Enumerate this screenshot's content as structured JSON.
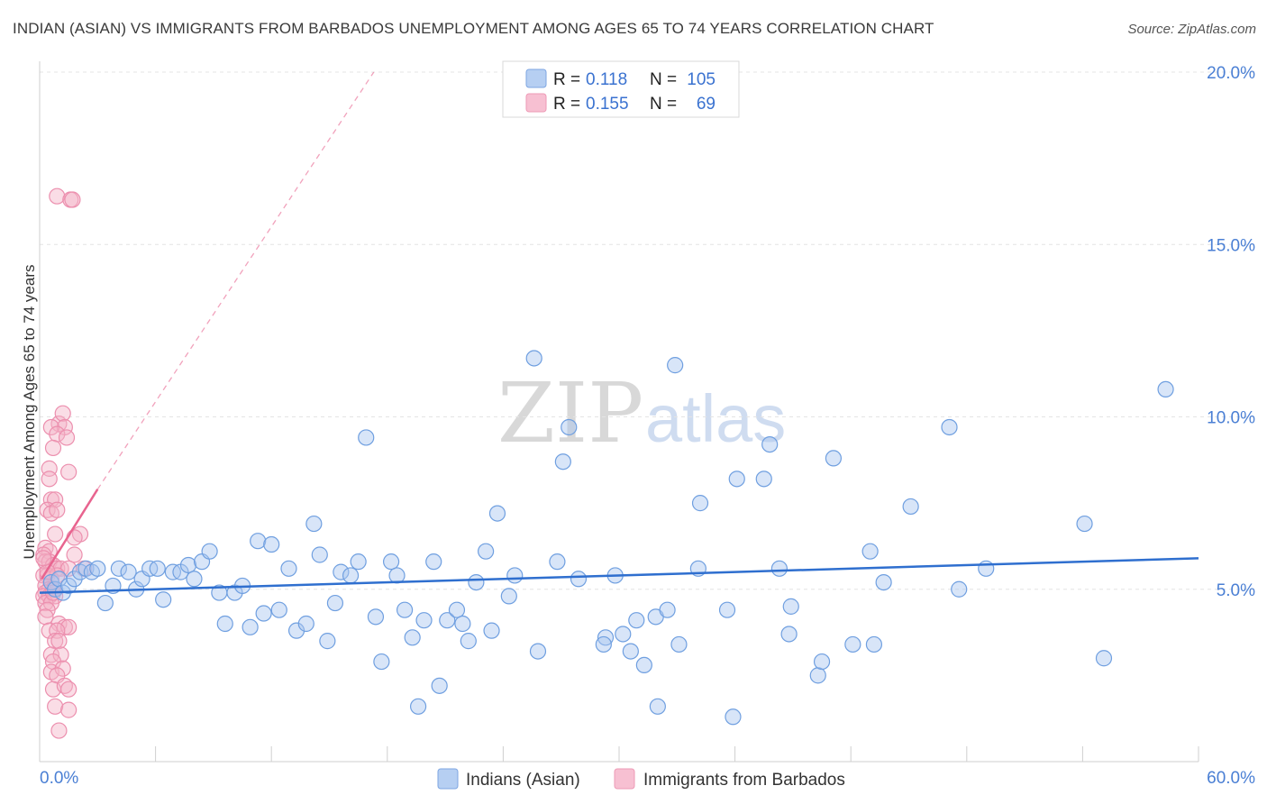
{
  "header": {
    "title": "INDIAN (ASIAN) VS IMMIGRANTS FROM BARBADOS UNEMPLOYMENT AMONG AGES 65 TO 74 YEARS CORRELATION CHART",
    "source": "Source: ZipAtlas.com"
  },
  "watermark": {
    "part1": "ZIP",
    "part2": "atlas"
  },
  "legend": {
    "rows": [
      {
        "r_label": "R =",
        "r_value": "0.118",
        "n_label": "N =",
        "n_value": "105"
      },
      {
        "r_label": "R =",
        "r_value": "0.155",
        "n_label": "N =",
        "n_value": "69"
      }
    ]
  },
  "bottom_legend": {
    "items": [
      {
        "label": "Indians (Asian)"
      },
      {
        "label": "Immigrants from Barbados"
      }
    ]
  },
  "colors": {
    "blue_fill": "#a9c6ef",
    "blue_stroke": "#6f9fe0",
    "blue_line": "#2f6fcf",
    "pink_fill": "#f4b3c8",
    "pink_stroke": "#ec8fae",
    "pink_line": "#e8648f",
    "grid": "#e4e4e4",
    "tick_label": "#4a7fd4"
  },
  "chart_data": {
    "type": "scatter",
    "title": "INDIAN (ASIAN) VS IMMIGRANTS FROM BARBADOS UNEMPLOYMENT AMONG AGES 65 TO 74 YEARS CORRELATION CHART",
    "xlabel": "",
    "ylabel": "Unemployment Among Ages 65 to 74 years",
    "xlim": [
      0,
      60
    ],
    "ylim": [
      0,
      20.5
    ],
    "x_tick_labels": [
      "0.0%",
      "60.0%"
    ],
    "y_ticks": [
      5,
      10,
      15,
      20
    ],
    "y_tick_labels": [
      "5.0%",
      "10.0%",
      "15.0%",
      "20.0%"
    ],
    "series": [
      {
        "name": "Indians (Asian)",
        "color": "#6f9fe0",
        "trend": {
          "x": [
            0,
            60
          ],
          "y": [
            4.9,
            5.9
          ]
        },
        "points": [
          [
            0.6,
            5.2
          ],
          [
            0.8,
            5.0
          ],
          [
            1.0,
            5.3
          ],
          [
            1.2,
            4.9
          ],
          [
            1.5,
            5.1
          ],
          [
            1.8,
            5.3
          ],
          [
            2.1,
            5.5
          ],
          [
            2.4,
            5.6
          ],
          [
            2.7,
            5.5
          ],
          [
            3.0,
            5.6
          ],
          [
            3.4,
            4.6
          ],
          [
            3.8,
            5.1
          ],
          [
            4.1,
            5.6
          ],
          [
            4.6,
            5.5
          ],
          [
            5.0,
            5.0
          ],
          [
            5.3,
            5.3
          ],
          [
            5.7,
            5.6
          ],
          [
            6.1,
            5.6
          ],
          [
            6.4,
            4.7
          ],
          [
            6.9,
            5.5
          ],
          [
            7.3,
            5.5
          ],
          [
            7.7,
            5.7
          ],
          [
            8.0,
            5.3
          ],
          [
            8.4,
            5.8
          ],
          [
            8.8,
            6.1
          ],
          [
            9.3,
            4.9
          ],
          [
            9.6,
            4.0
          ],
          [
            10.1,
            4.9
          ],
          [
            10.5,
            5.1
          ],
          [
            10.9,
            3.9
          ],
          [
            11.3,
            6.4
          ],
          [
            11.6,
            4.3
          ],
          [
            12.0,
            6.3
          ],
          [
            12.4,
            4.4
          ],
          [
            12.9,
            5.6
          ],
          [
            13.3,
            3.8
          ],
          [
            13.8,
            4.0
          ],
          [
            14.2,
            6.9
          ],
          [
            14.5,
            6.0
          ],
          [
            14.9,
            3.5
          ],
          [
            15.3,
            4.6
          ],
          [
            15.6,
            5.5
          ],
          [
            16.1,
            5.4
          ],
          [
            16.5,
            5.8
          ],
          [
            16.9,
            9.4
          ],
          [
            17.4,
            4.2
          ],
          [
            17.7,
            2.9
          ],
          [
            18.2,
            5.8
          ],
          [
            18.5,
            5.4
          ],
          [
            18.9,
            4.4
          ],
          [
            19.3,
            3.6
          ],
          [
            19.6,
            1.6
          ],
          [
            19.9,
            4.1
          ],
          [
            20.4,
            5.8
          ],
          [
            20.7,
            2.2
          ],
          [
            21.1,
            4.1
          ],
          [
            21.6,
            4.4
          ],
          [
            21.9,
            4.0
          ],
          [
            22.2,
            3.5
          ],
          [
            22.6,
            5.2
          ],
          [
            23.1,
            6.1
          ],
          [
            23.4,
            3.8
          ],
          [
            23.7,
            7.2
          ],
          [
            24.3,
            4.8
          ],
          [
            24.6,
            5.4
          ],
          [
            25.6,
            11.7
          ],
          [
            25.8,
            3.2
          ],
          [
            26.8,
            5.8
          ],
          [
            27.1,
            8.7
          ],
          [
            27.4,
            9.7
          ],
          [
            27.9,
            5.3
          ],
          [
            29.3,
            3.6
          ],
          [
            29.2,
            3.4
          ],
          [
            29.8,
            5.4
          ],
          [
            30.2,
            3.7
          ],
          [
            30.6,
            3.2
          ],
          [
            30.9,
            4.1
          ],
          [
            31.3,
            2.8
          ],
          [
            31.9,
            4.2
          ],
          [
            32.5,
            4.4
          ],
          [
            32.0,
            1.6
          ],
          [
            32.9,
            11.5
          ],
          [
            33.1,
            3.4
          ],
          [
            34.1,
            5.6
          ],
          [
            34.2,
            7.5
          ],
          [
            35.6,
            4.4
          ],
          [
            35.9,
            1.3
          ],
          [
            36.1,
            8.2
          ],
          [
            37.5,
            8.2
          ],
          [
            37.8,
            9.2
          ],
          [
            38.3,
            5.6
          ],
          [
            38.9,
            4.5
          ],
          [
            38.8,
            3.7
          ],
          [
            40.3,
            2.5
          ],
          [
            40.5,
            2.9
          ],
          [
            41.1,
            8.8
          ],
          [
            42.1,
            3.4
          ],
          [
            43.0,
            6.1
          ],
          [
            43.2,
            3.4
          ],
          [
            43.7,
            5.2
          ],
          [
            45.1,
            7.4
          ],
          [
            47.1,
            9.7
          ],
          [
            47.6,
            5.0
          ],
          [
            49.0,
            5.6
          ],
          [
            54.1,
            6.9
          ],
          [
            55.1,
            3.0
          ],
          [
            58.3,
            10.8
          ]
        ]
      },
      {
        "name": "Immigrants from Barbados",
        "color": "#ec8fae",
        "trend_solid": {
          "x": [
            0.1,
            3.0
          ],
          "y": [
            5.3,
            7.9
          ]
        },
        "trend_dashed": {
          "x": [
            3.0,
            17.3
          ],
          "y": [
            7.9,
            20.0
          ]
        },
        "points": [
          [
            0.9,
            16.4
          ],
          [
            1.6,
            16.3
          ],
          [
            1.7,
            16.3
          ],
          [
            1.0,
            9.8
          ],
          [
            1.2,
            10.1
          ],
          [
            1.3,
            9.7
          ],
          [
            0.6,
            9.7
          ],
          [
            0.9,
            9.5
          ],
          [
            1.4,
            9.4
          ],
          [
            0.7,
            9.1
          ],
          [
            0.5,
            8.5
          ],
          [
            1.5,
            8.4
          ],
          [
            0.5,
            8.2
          ],
          [
            0.6,
            7.6
          ],
          [
            0.8,
            7.6
          ],
          [
            0.4,
            7.3
          ],
          [
            0.6,
            7.2
          ],
          [
            0.9,
            7.3
          ],
          [
            2.1,
            6.6
          ],
          [
            1.8,
            6.5
          ],
          [
            0.8,
            6.6
          ],
          [
            0.3,
            6.2
          ],
          [
            0.5,
            6.1
          ],
          [
            0.2,
            6.0
          ],
          [
            1.8,
            6.0
          ],
          [
            0.3,
            5.8
          ],
          [
            0.5,
            5.8
          ],
          [
            0.7,
            5.7
          ],
          [
            0.9,
            5.6
          ],
          [
            1.1,
            5.6
          ],
          [
            1.5,
            5.6
          ],
          [
            2.3,
            5.6
          ],
          [
            0.2,
            5.4
          ],
          [
            0.4,
            5.4
          ],
          [
            0.6,
            5.3
          ],
          [
            0.9,
            5.4
          ],
          [
            0.3,
            5.1
          ],
          [
            0.5,
            5.0
          ],
          [
            0.7,
            5.0
          ],
          [
            0.3,
            4.9
          ],
          [
            0.2,
            4.8
          ],
          [
            0.5,
            4.8
          ],
          [
            0.8,
            4.8
          ],
          [
            0.3,
            4.6
          ],
          [
            0.6,
            4.6
          ],
          [
            0.4,
            4.4
          ],
          [
            0.3,
            4.2
          ],
          [
            1.0,
            4.0
          ],
          [
            1.3,
            3.9
          ],
          [
            1.5,
            3.9
          ],
          [
            0.5,
            3.8
          ],
          [
            0.9,
            3.8
          ],
          [
            0.8,
            3.5
          ],
          [
            1.0,
            3.5
          ],
          [
            0.6,
            3.1
          ],
          [
            1.1,
            3.1
          ],
          [
            0.7,
            2.9
          ],
          [
            0.6,
            2.6
          ],
          [
            1.2,
            2.7
          ],
          [
            0.9,
            2.5
          ],
          [
            0.7,
            2.1
          ],
          [
            1.3,
            2.2
          ],
          [
            1.5,
            2.1
          ],
          [
            0.8,
            1.6
          ],
          [
            1.5,
            1.5
          ],
          [
            1.0,
            0.9
          ],
          [
            0.4,
            5.5
          ],
          [
            0.2,
            5.9
          ],
          [
            0.7,
            4.9
          ]
        ]
      }
    ]
  }
}
